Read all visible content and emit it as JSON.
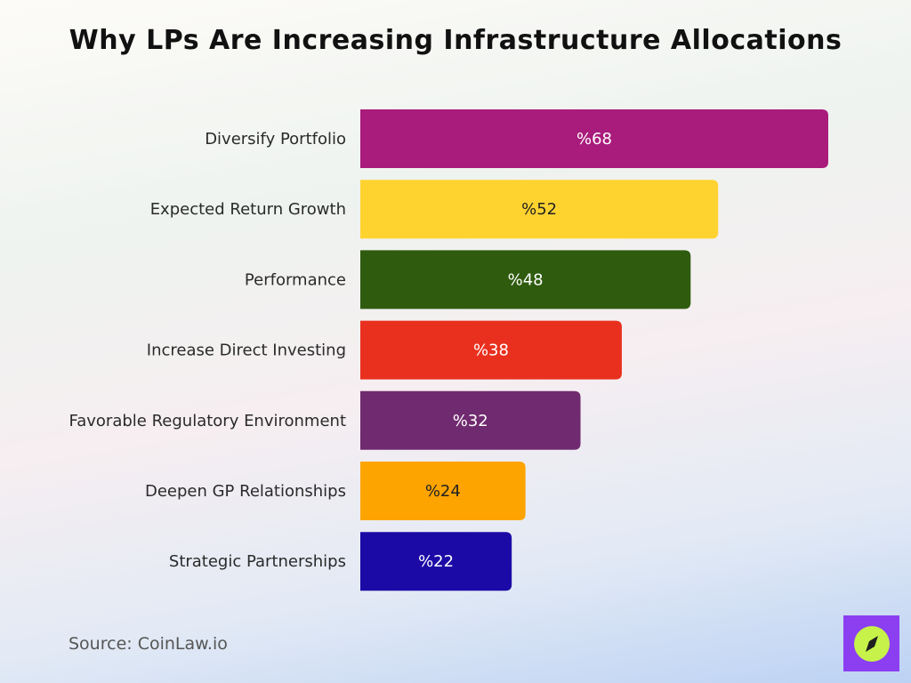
{
  "title": "Why LPs Are Increasing Infrastructure Allocations",
  "source": "Source: CoinLaw.io",
  "logo": {
    "icon": "compass-icon",
    "bg": "#8b3ff0",
    "circle": "#c6f24a",
    "needle": "#1f1f1f"
  },
  "chart_data": {
    "type": "bar",
    "orientation": "horizontal",
    "categories": [
      "Diversify Portfolio",
      "Expected Return Growth",
      "Performance",
      "Increase Direct Investing",
      "Favorable Regulatory Environment",
      "Deepen GP Relationships",
      "Strategic Partnerships"
    ],
    "values": [
      68,
      52,
      48,
      38,
      32,
      24,
      22
    ],
    "value_labels": [
      "%68",
      "%52",
      "%48",
      "%38",
      "%32",
      "%24",
      "%22"
    ],
    "colors": [
      "#a91c7b",
      "#fed330",
      "#2f5b0f",
      "#e9301f",
      "#702a6f",
      "#fda400",
      "#1b0aa6"
    ],
    "label_colors": [
      "#ffffff",
      "#222222",
      "#ffffff",
      "#ffffff",
      "#ffffff",
      "#222222",
      "#ffffff"
    ],
    "xlim": [
      0,
      68
    ],
    "grid": false,
    "legend": "none"
  }
}
